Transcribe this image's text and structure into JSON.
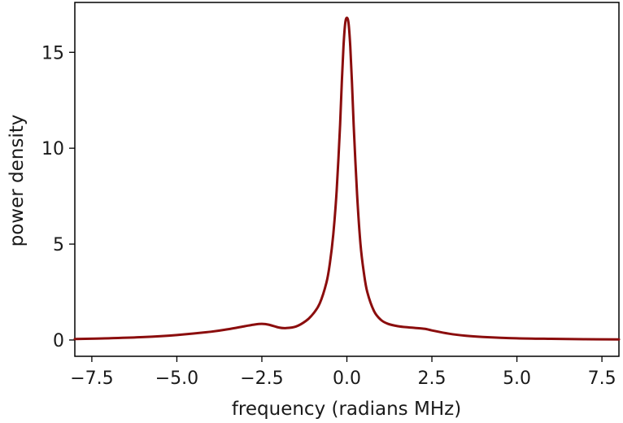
{
  "chart_data": {
    "type": "line",
    "title": "",
    "xlabel": "frequency (radians MHz)",
    "ylabel": "power density",
    "xlim": [
      -8,
      8
    ],
    "ylim": [
      -0.85,
      17.6
    ],
    "x_ticks": [
      -7.5,
      -5.0,
      -2.5,
      0.0,
      2.5,
      5.0,
      7.5
    ],
    "x_tick_labels": [
      "−7.5",
      "−5.0",
      "−2.5",
      "0.0",
      "2.5",
      "5.0",
      "7.5"
    ],
    "y_ticks": [
      0,
      5,
      10,
      15
    ],
    "y_tick_labels": [
      "0",
      "5",
      "10",
      "15"
    ],
    "grid": false,
    "legend": "none",
    "series": [
      {
        "color": "#8b0d0d",
        "x": [
          -8.0,
          -7.0,
          -6.0,
          -5.0,
          -4.0,
          -3.5,
          -3.0,
          -2.7,
          -2.5,
          -2.3,
          -2.0,
          -1.8,
          -1.5,
          -1.2,
          -1.0,
          -0.8,
          -0.6,
          -0.5,
          -0.4,
          -0.3,
          -0.2,
          -0.15,
          -0.1,
          -0.05,
          0.0,
          0.05,
          0.1,
          0.15,
          0.2,
          0.3,
          0.4,
          0.5,
          0.6,
          0.8,
          1.0,
          1.2,
          1.5,
          1.8,
          2.0,
          2.3,
          2.5,
          3.0,
          3.5,
          4.0,
          5.0,
          6.0,
          7.0,
          8.0
        ],
        "y": [
          0.05,
          0.09,
          0.15,
          0.26,
          0.43,
          0.56,
          0.72,
          0.81,
          0.84,
          0.8,
          0.65,
          0.62,
          0.7,
          1.0,
          1.35,
          1.9,
          3.0,
          4.0,
          5.5,
          7.8,
          11.2,
          13.4,
          15.3,
          16.5,
          16.8,
          16.5,
          15.3,
          13.4,
          11.2,
          7.6,
          5.0,
          3.5,
          2.5,
          1.5,
          1.05,
          0.85,
          0.72,
          0.66,
          0.63,
          0.58,
          0.5,
          0.33,
          0.22,
          0.16,
          0.09,
          0.06,
          0.04,
          0.03
        ]
      }
    ]
  }
}
